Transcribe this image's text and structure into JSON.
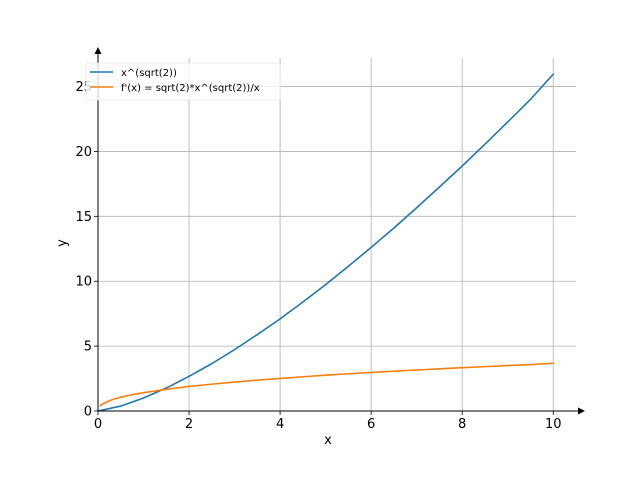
{
  "chart_data": {
    "type": "line",
    "title": "",
    "xlabel": "x",
    "ylabel": "y",
    "xlim": [
      0,
      10.5
    ],
    "ylim": [
      0,
      27.2
    ],
    "grid": true,
    "legend_position": "top-left",
    "x_ticks": [
      0,
      2,
      4,
      6,
      8,
      10
    ],
    "x_tick_labels": [
      "0",
      "2",
      "4",
      "6",
      "8",
      "10"
    ],
    "y_ticks": [
      0,
      5,
      10,
      15,
      20,
      25
    ],
    "y_tick_labels": [
      "0",
      "5",
      "10",
      "15",
      "20",
      "25"
    ],
    "series": [
      {
        "name": "x^(sqrt(2))",
        "color": "#1f77b4",
        "x": [
          0,
          0.5,
          1,
          1.5,
          2,
          2.5,
          3,
          3.5,
          4,
          4.5,
          5,
          5.5,
          6,
          6.5,
          7,
          7.5,
          8,
          8.5,
          9,
          9.5,
          10
        ],
        "y": [
          0,
          0.38,
          1,
          1.77,
          2.67,
          3.65,
          4.73,
          5.89,
          7.1,
          8.4,
          9.74,
          11.15,
          12.61,
          14.1,
          15.66,
          17.26,
          18.88,
          20.56,
          22.27,
          24.01,
          25.95
        ]
      },
      {
        "name": "f'(x) = sqrt(2)*x^(sqrt(2))/x",
        "color": "#ff7f0e",
        "x": [
          0.05,
          0.1,
          0.25,
          0.5,
          0.75,
          1,
          1.5,
          2,
          2.5,
          3,
          3.5,
          4,
          4.5,
          5,
          5.5,
          6,
          6.5,
          7,
          7.5,
          8,
          8.5,
          9,
          9.5,
          10
        ],
        "y": [
          0.41,
          0.54,
          0.8,
          1.07,
          1.26,
          1.41,
          1.67,
          1.89,
          2.07,
          2.23,
          2.38,
          2.51,
          2.64,
          2.76,
          2.87,
          2.97,
          3.07,
          3.16,
          3.25,
          3.34,
          3.42,
          3.5,
          3.58,
          3.68
        ]
      }
    ]
  }
}
